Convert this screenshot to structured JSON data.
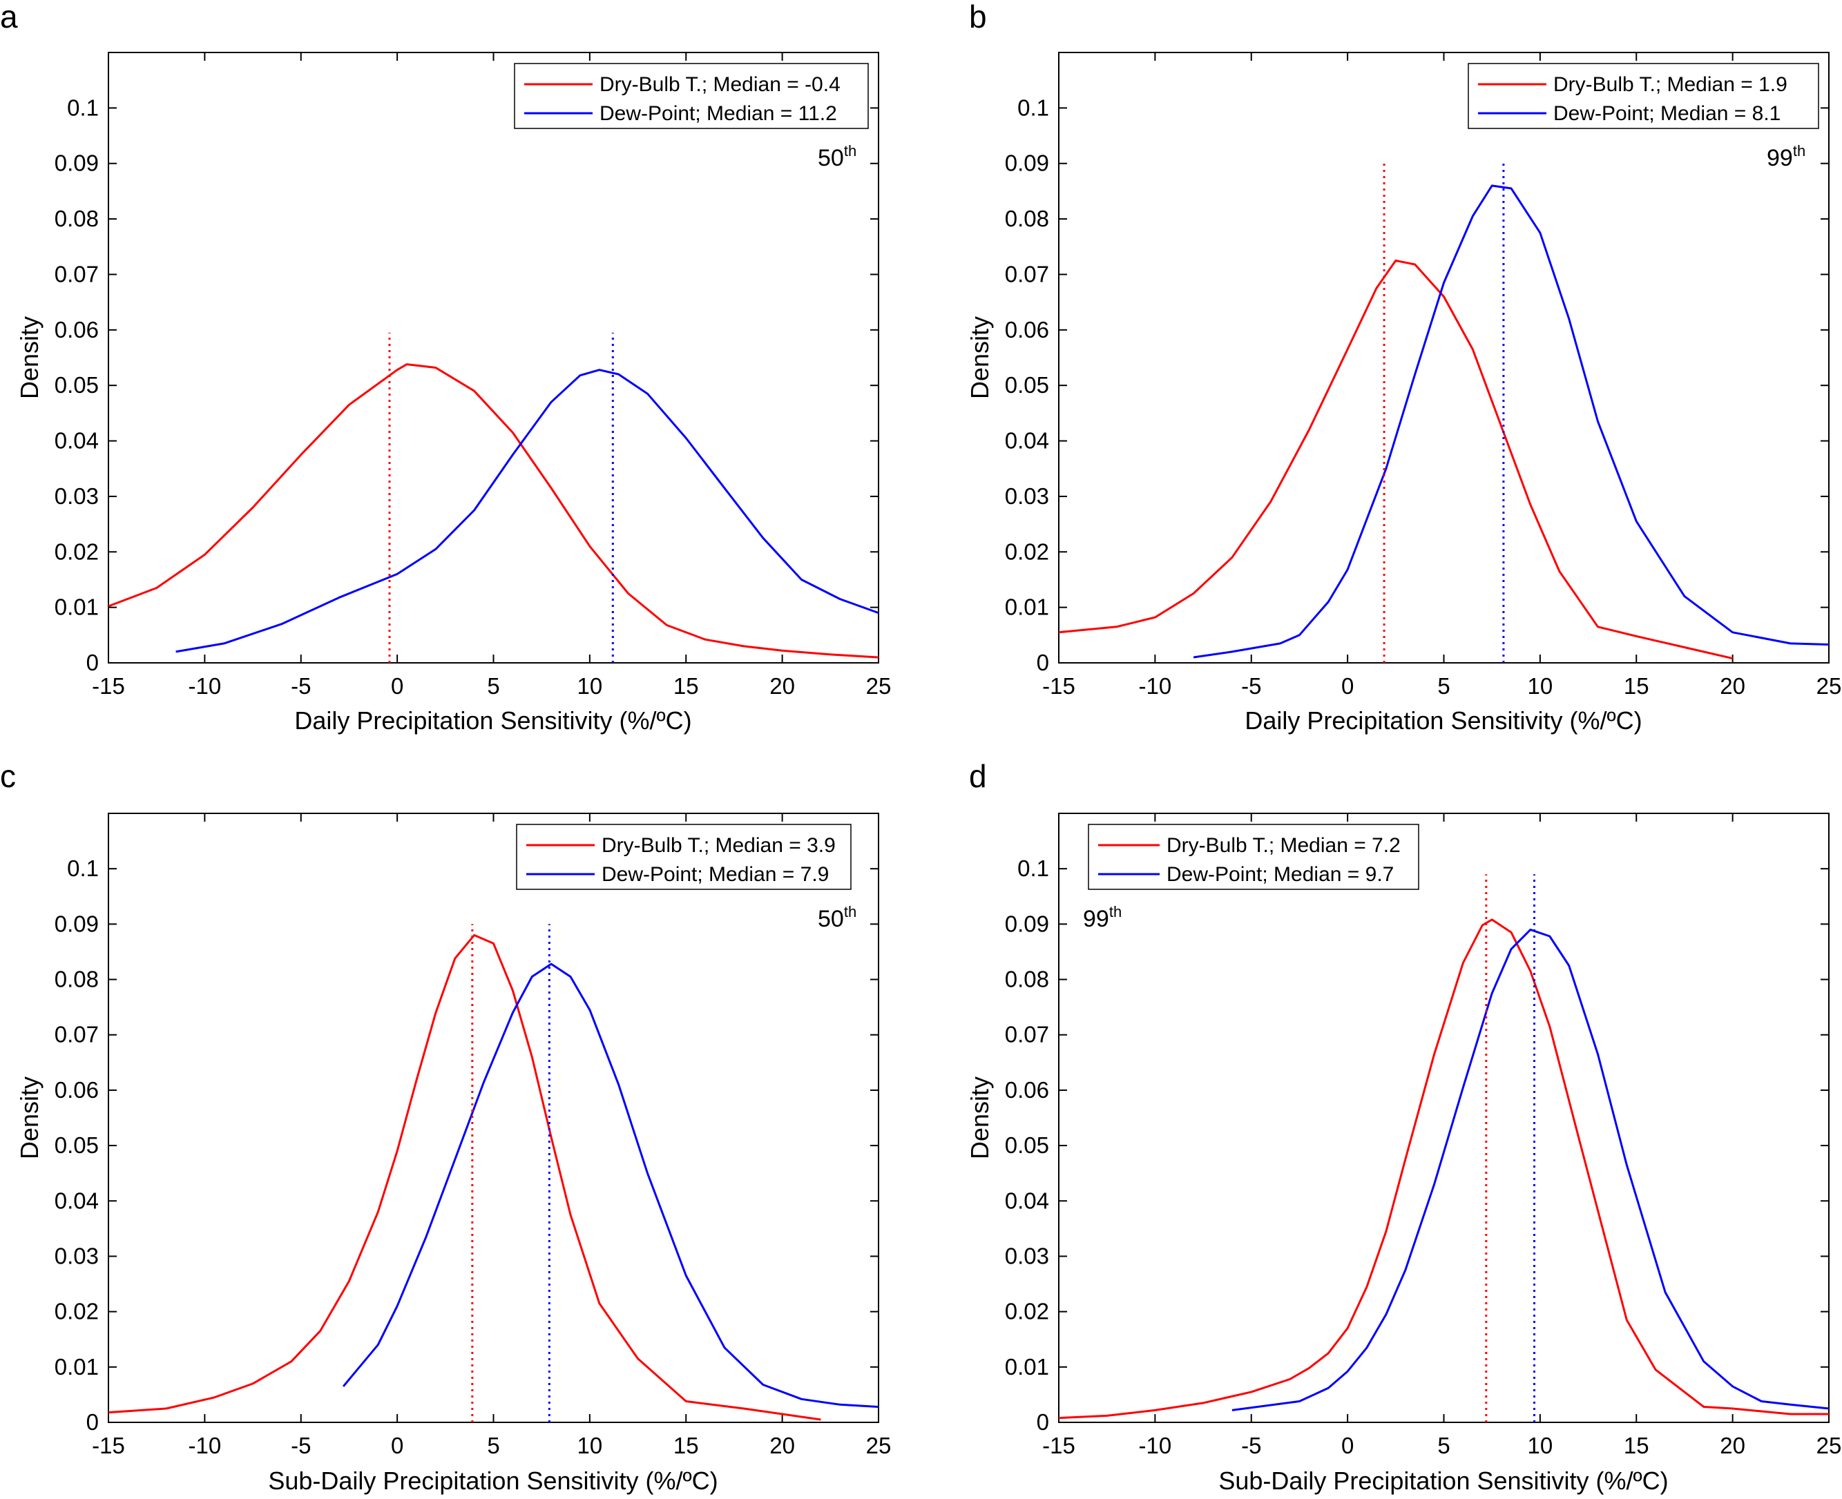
{
  "colors": {
    "dry_bulb": "#ff0000",
    "dew_point": "#0000ff",
    "axis": "#000000"
  },
  "chart_data": [
    {
      "type": "line",
      "panel": "a",
      "xlabel": "Daily Precipitation Sensitivity (%/ºC)",
      "ylabel": "Density",
      "xlim": [
        -15,
        25
      ],
      "ylim": [
        0,
        0.11
      ],
      "xticks": [
        "-15",
        "-10",
        "-5",
        "0",
        "5",
        "10",
        "15",
        "20",
        "25"
      ],
      "yticks": [
        "0",
        "0.01",
        "0.02",
        "0.03",
        "0.04",
        "0.05",
        "0.06",
        "0.07",
        "0.08",
        "0.09",
        "0.1"
      ],
      "percentile": {
        "value": "50",
        "suffix": "th",
        "position": "top-right"
      },
      "legend_position": "top-right",
      "series": [
        {
          "name": "Dry-Bulb T.; Median = -0.4",
          "color": "#ff0000",
          "median": -0.4,
          "x": [
            -15,
            -12.5,
            -10,
            -7.5,
            -5,
            -2.5,
            0,
            0.5,
            2,
            4,
            6,
            8,
            10,
            12,
            14,
            16,
            18,
            20,
            22.5,
            25
          ],
          "y": [
            0.0102,
            0.0135,
            0.0195,
            0.028,
            0.0375,
            0.0465,
            0.0528,
            0.0538,
            0.0532,
            0.049,
            0.0415,
            0.0315,
            0.021,
            0.0125,
            0.0068,
            0.0042,
            0.003,
            0.0022,
            0.0015,
            0.001
          ]
        },
        {
          "name": "Dew-Point; Median = 11.2",
          "color": "#0000ff",
          "median": 11.2,
          "x": [
            -11.5,
            -9,
            -6,
            -3,
            0,
            2,
            4,
            6,
            8,
            9.5,
            10.5,
            11.5,
            13,
            15,
            17,
            19,
            21,
            23,
            25
          ],
          "y": [
            0.002,
            0.0035,
            0.007,
            0.0118,
            0.016,
            0.0205,
            0.0275,
            0.0375,
            0.047,
            0.0518,
            0.0528,
            0.052,
            0.0485,
            0.0405,
            0.0315,
            0.0225,
            0.015,
            0.0115,
            0.009
          ]
        }
      ]
    },
    {
      "type": "line",
      "panel": "b",
      "xlabel": "Daily Precipitation Sensitivity (%/ºC)",
      "ylabel": "Density",
      "xlim": [
        -15,
        25
      ],
      "ylim": [
        0,
        0.11
      ],
      "xticks": [
        "-15",
        "-10",
        "-5",
        "0",
        "5",
        "10",
        "15",
        "20",
        "25"
      ],
      "yticks": [
        "0",
        "0.01",
        "0.02",
        "0.03",
        "0.04",
        "0.05",
        "0.06",
        "0.07",
        "0.08",
        "0.09",
        "0.1"
      ],
      "percentile": {
        "value": "99",
        "suffix": "th",
        "position": "top-right"
      },
      "legend_position": "top-right",
      "series": [
        {
          "name": "Dry-Bulb T.; Median = 1.9",
          "color": "#ff0000",
          "median": 1.9,
          "x": [
            -15,
            -12,
            -10,
            -8,
            -6,
            -4,
            -2,
            0,
            1.5,
            2.5,
            3.5,
            5,
            6.5,
            8,
            9.5,
            11,
            13,
            15,
            17.5,
            20
          ],
          "y": [
            0.0055,
            0.0065,
            0.0082,
            0.0125,
            0.019,
            0.029,
            0.042,
            0.0565,
            0.0675,
            0.0725,
            0.0718,
            0.066,
            0.0565,
            0.0425,
            0.0285,
            0.0165,
            0.0065,
            0.0048,
            0.0028,
            0.0008
          ]
        },
        {
          "name": "Dew-Point; Median = 8.1",
          "color": "#0000ff",
          "median": 8.1,
          "x": [
            -8,
            -6,
            -3.5,
            -2.5,
            -1,
            0,
            2,
            3.5,
            5,
            6.5,
            7.5,
            8.5,
            10,
            11.5,
            13,
            15,
            17.5,
            20,
            23,
            25
          ],
          "y": [
            0.001,
            0.002,
            0.0035,
            0.005,
            0.011,
            0.0168,
            0.035,
            0.052,
            0.0685,
            0.0805,
            0.086,
            0.0855,
            0.0775,
            0.062,
            0.0435,
            0.0255,
            0.012,
            0.0055,
            0.0035,
            0.0033
          ]
        }
      ]
    },
    {
      "type": "line",
      "panel": "c",
      "xlabel": "Sub-Daily Precipitation Sensitivity (%/ºC)",
      "ylabel": "Density",
      "xlim": [
        -15,
        25
      ],
      "ylim": [
        0,
        0.11
      ],
      "xticks": [
        "-15",
        "-10",
        "-5",
        "0",
        "5",
        "10",
        "15",
        "20",
        "25"
      ],
      "yticks": [
        "0",
        "0.01",
        "0.02",
        "0.03",
        "0.04",
        "0.05",
        "0.06",
        "0.07",
        "0.08",
        "0.09",
        "0.1"
      ],
      "percentile": {
        "value": "50",
        "suffix": "th",
        "position": "top-right"
      },
      "legend_position": "top-right",
      "series": [
        {
          "name": "Dry-Bulb T.; Median = 3.9",
          "color": "#ff0000",
          "median": 3.9,
          "x": [
            -15,
            -12,
            -9.5,
            -7.5,
            -5.5,
            -4,
            -2.5,
            -1,
            0,
            1,
            2,
            3,
            4,
            5,
            6,
            7,
            8,
            9,
            10.5,
            12.5,
            15,
            18,
            22
          ],
          "y": [
            0.0018,
            0.0025,
            0.0045,
            0.007,
            0.011,
            0.0165,
            0.0255,
            0.038,
            0.049,
            0.0618,
            0.074,
            0.0838,
            0.088,
            0.0865,
            0.078,
            0.066,
            0.0515,
            0.0375,
            0.0215,
            0.0115,
            0.0038,
            0.0025,
            0.0005
          ]
        },
        {
          "name": "Dew-Point; Median = 7.9",
          "color": "#0000ff",
          "median": 7.9,
          "x": [
            -2.8,
            -1,
            0,
            1.5,
            3,
            4.5,
            6,
            7,
            8,
            9,
            10,
            11.5,
            13,
            15,
            17,
            19,
            21,
            23,
            25
          ],
          "y": [
            0.0065,
            0.014,
            0.021,
            0.0335,
            0.0475,
            0.0615,
            0.074,
            0.0805,
            0.0828,
            0.0805,
            0.0745,
            0.061,
            0.045,
            0.0265,
            0.0135,
            0.0068,
            0.0042,
            0.0032,
            0.0028
          ]
        }
      ]
    },
    {
      "type": "line",
      "panel": "d",
      "xlabel": "Sub-Daily Precipitation Sensitivity (%/ºC)",
      "ylabel": "Density",
      "xlim": [
        -15,
        25
      ],
      "ylim": [
        0,
        0.11
      ],
      "xticks": [
        "-15",
        "-10",
        "-5",
        "0",
        "5",
        "10",
        "15",
        "20",
        "25"
      ],
      "yticks": [
        "0",
        "0.01",
        "0.02",
        "0.03",
        "0.04",
        "0.05",
        "0.06",
        "0.07",
        "0.08",
        "0.09",
        "0.1"
      ],
      "percentile": {
        "value": "99",
        "suffix": "th",
        "position": "top-left"
      },
      "legend_position": "top-left",
      "series": [
        {
          "name": "Dry-Bulb T.; Median = 7.2",
          "color": "#ff0000",
          "median": 7.2,
          "x": [
            -15,
            -12.5,
            -10,
            -7.5,
            -5,
            -3,
            -2,
            -1,
            0,
            1,
            2,
            3,
            4.5,
            6,
            7,
            7.5,
            8.5,
            9.5,
            10.5,
            12,
            14.5,
            16,
            18.5,
            20,
            23,
            25
          ],
          "y": [
            0.0008,
            0.0012,
            0.0022,
            0.0035,
            0.0055,
            0.0078,
            0.0098,
            0.0125,
            0.017,
            0.0245,
            0.0345,
            0.0475,
            0.0665,
            0.083,
            0.0898,
            0.0908,
            0.0885,
            0.0815,
            0.0715,
            0.0515,
            0.0185,
            0.0095,
            0.0028,
            0.0025,
            0.0015,
            0.0015
          ]
        },
        {
          "name": "Dew-Point; Median = 9.7",
          "color": "#0000ff",
          "median": 9.7,
          "x": [
            -6,
            -2.5,
            -1,
            0,
            1,
            2,
            3,
            4.5,
            6,
            7.5,
            8.5,
            9.5,
            10.5,
            11.5,
            13,
            14.5,
            16.5,
            18.5,
            20,
            21.5,
            23,
            25
          ],
          "y": [
            0.0022,
            0.0038,
            0.0062,
            0.0092,
            0.0135,
            0.0195,
            0.0275,
            0.043,
            0.0605,
            0.0775,
            0.0855,
            0.089,
            0.0878,
            0.0825,
            0.0665,
            0.0465,
            0.0235,
            0.011,
            0.0065,
            0.0038,
            0.0032,
            0.0025
          ]
        }
      ]
    }
  ]
}
